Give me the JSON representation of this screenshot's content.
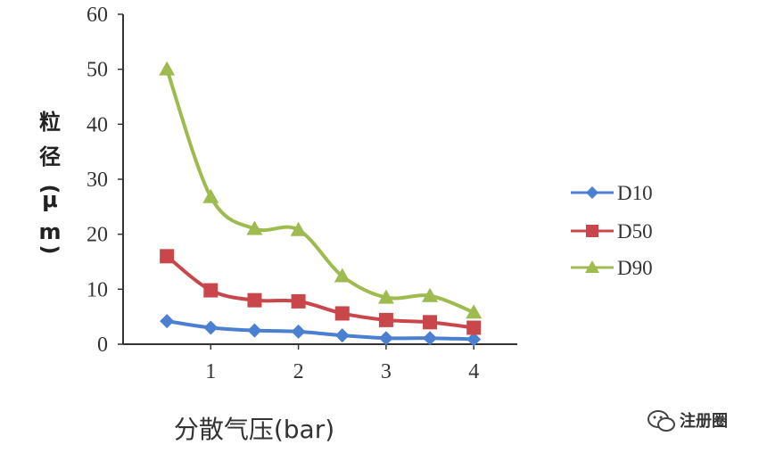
{
  "chart_data": {
    "type": "line",
    "title": "",
    "xlabel": "分散气压(bar)",
    "ylabel_chars": [
      "粒",
      "径",
      "(",
      "μ",
      "m",
      ")"
    ],
    "x": [
      0.5,
      1.0,
      1.5,
      2.0,
      2.5,
      3.0,
      3.5,
      4.0
    ],
    "xticks": [
      "1",
      "2",
      "3",
      "4"
    ],
    "yticks": [
      "0",
      "10",
      "20",
      "30",
      "40",
      "50",
      "60"
    ],
    "ylim": [
      0,
      60
    ],
    "grid": false,
    "legend_position": "right",
    "series": [
      {
        "name": "D10",
        "color": "#4a7fd2",
        "marker": "diamond",
        "values": [
          4.2,
          3.0,
          2.5,
          2.3,
          1.6,
          1.1,
          1.1,
          0.9
        ]
      },
      {
        "name": "D50",
        "color": "#c9474a",
        "marker": "square",
        "values": [
          16.0,
          9.8,
          8.0,
          7.8,
          5.6,
          4.4,
          4.0,
          3.0
        ]
      },
      {
        "name": "D90",
        "color": "#9dbb4f",
        "marker": "triangle",
        "values": [
          50.0,
          26.8,
          21.0,
          20.8,
          12.4,
          8.5,
          8.8,
          5.8
        ]
      }
    ]
  },
  "watermark": {
    "text": "注册圈",
    "icon": "wechat-icon"
  }
}
